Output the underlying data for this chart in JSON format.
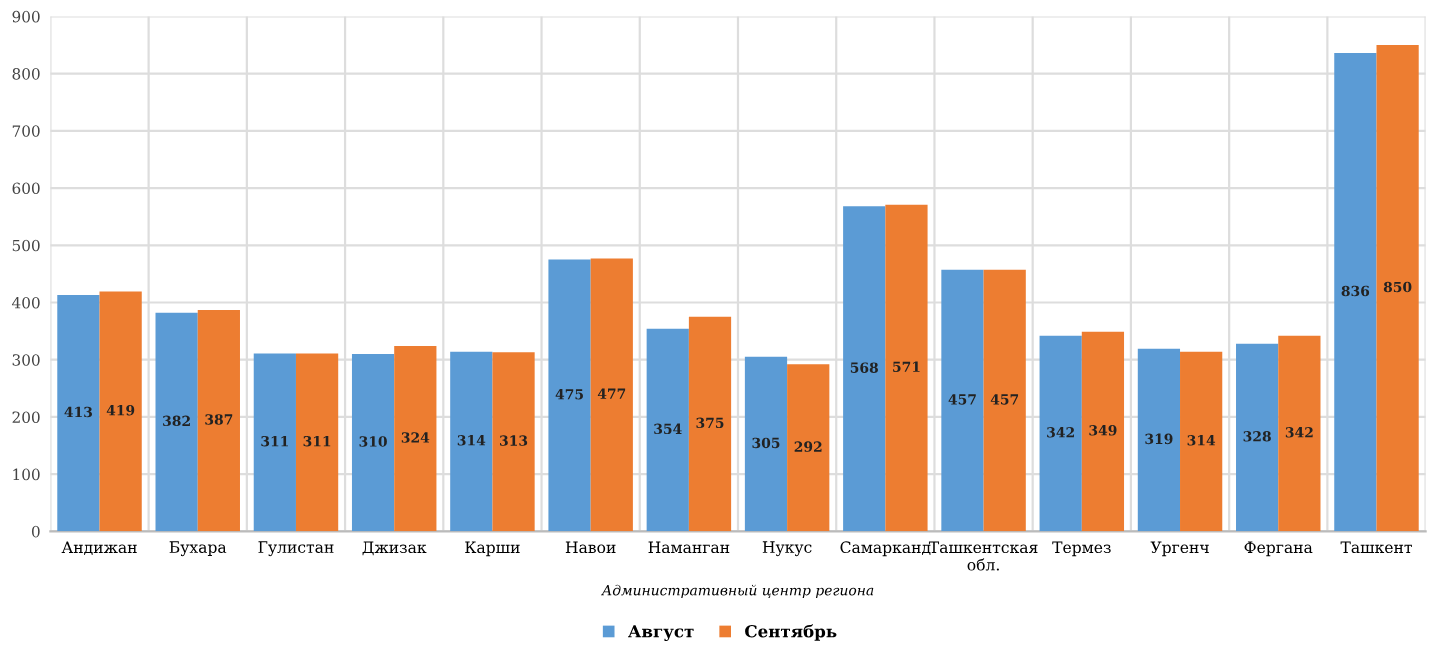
{
  "chart_data": {
    "type": "bar",
    "categories": [
      "Андижан",
      "Бухара",
      "Гулистан",
      "Джизак",
      "Карши",
      "Навои",
      "Наманган",
      "Нукус",
      "Самарканд",
      "Ташкентская\nобл.",
      "Термез",
      "Ургенч",
      "Фергана",
      "Ташкент"
    ],
    "xlabel": "Административный центр региона",
    "series": [
      {
        "name": "Август",
        "color": "#5b9bd5",
        "values": [
          413,
          382,
          311,
          310,
          314,
          475,
          354,
          305,
          568,
          457,
          342,
          319,
          328,
          836
        ]
      },
      {
        "name": "Сентябрь",
        "color": "#ed7d31",
        "values": [
          419,
          387,
          311,
          324,
          313,
          477,
          375,
          292,
          571,
          457,
          349,
          314,
          342,
          850
        ]
      }
    ],
    "ylim": [
      0,
      900
    ],
    "yticks": [
      0,
      100,
      200,
      300,
      400,
      500,
      600,
      700,
      800,
      900
    ],
    "grid": true,
    "legend": "bottom",
    "data_labels": true
  }
}
